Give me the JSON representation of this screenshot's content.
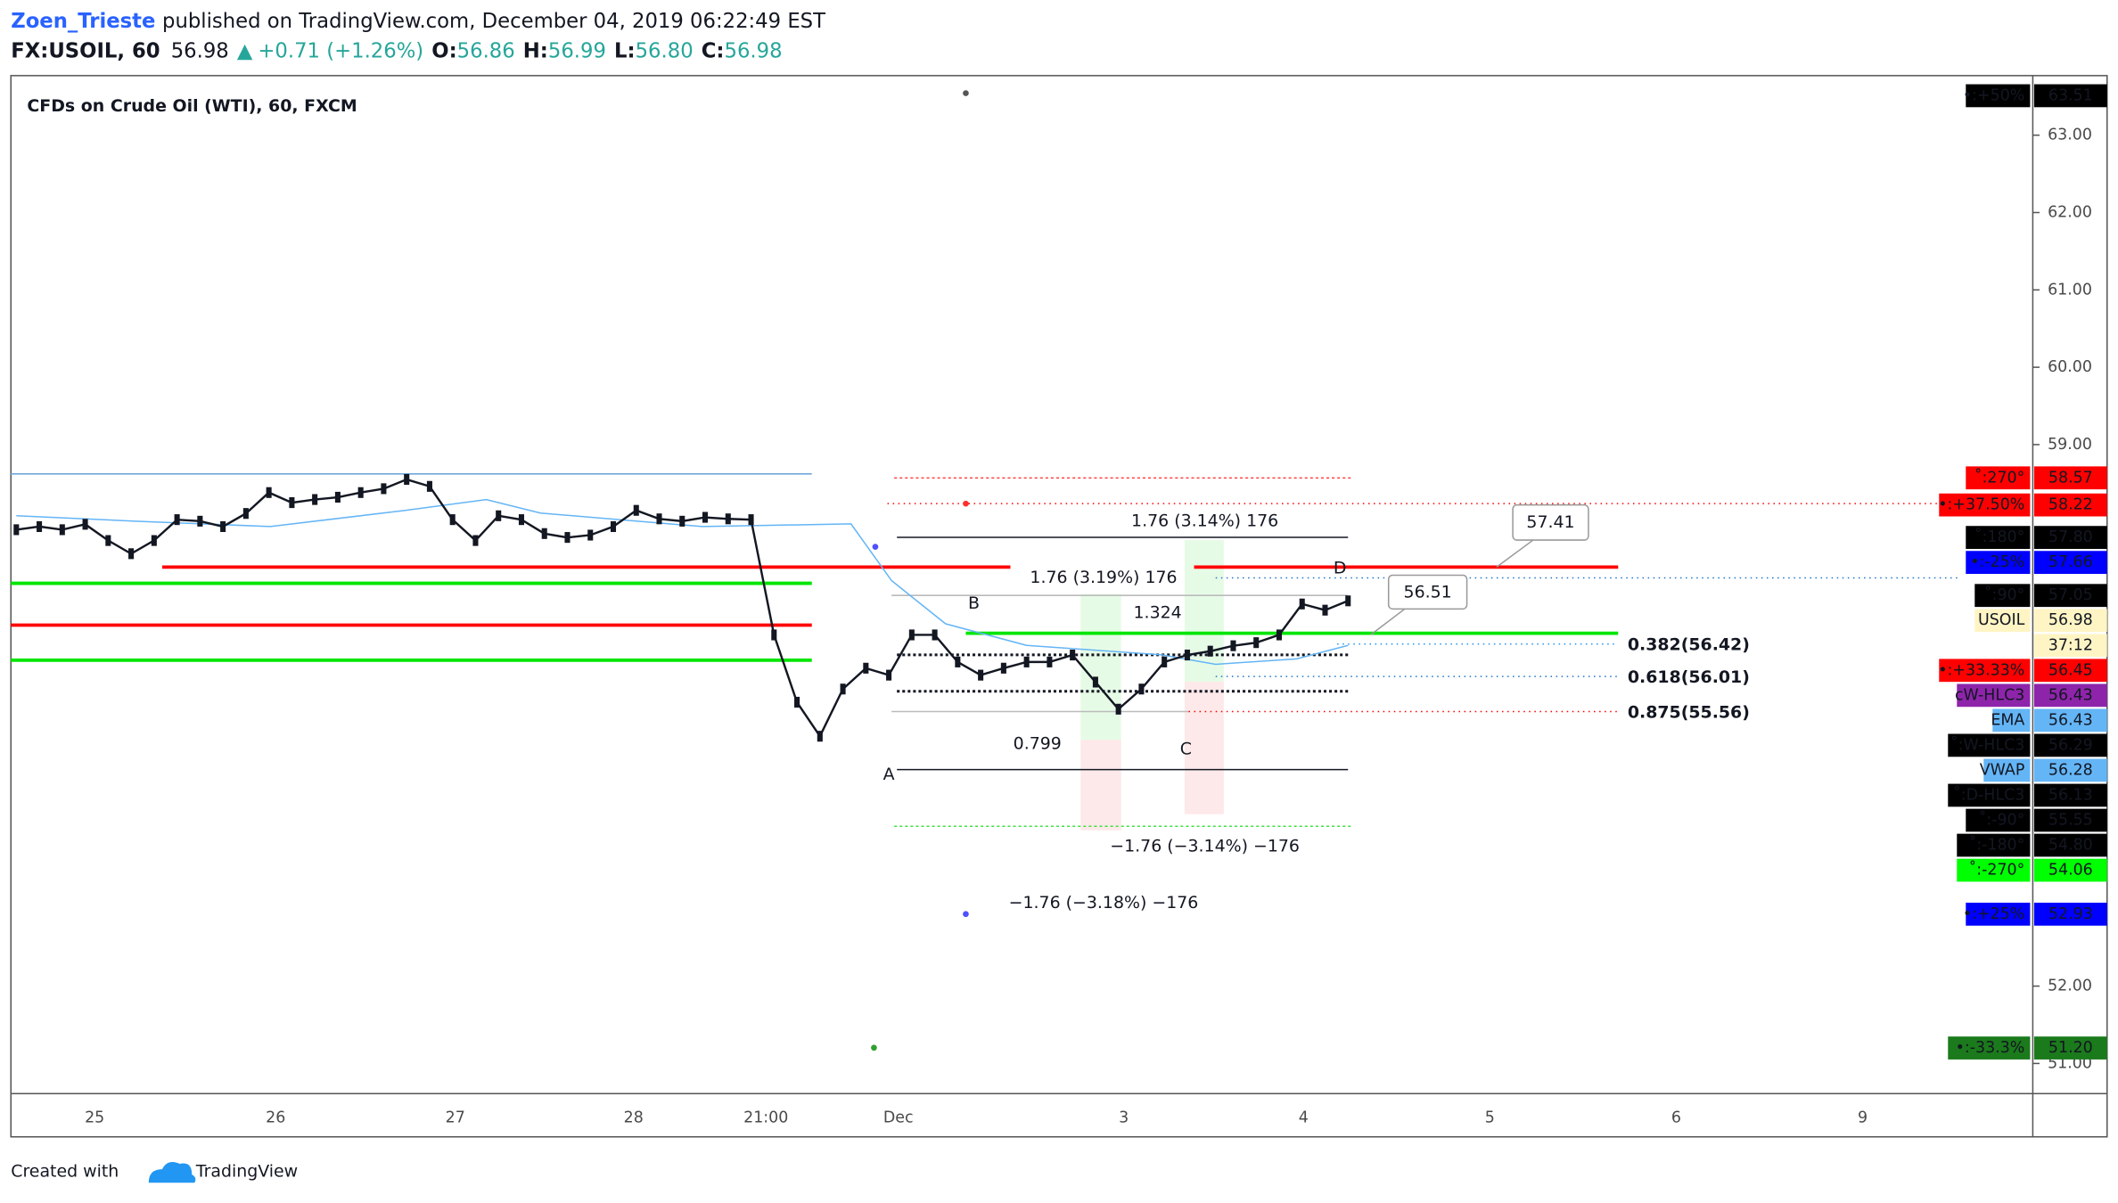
{
  "header": {
    "author": "Zoen_Trieste",
    "published": "published on TradingView.com, December 04, 2019 06:22:49 EST",
    "symbol": "FX:USOIL, 60",
    "last": "56.98",
    "arrow": "▲",
    "change": "+0.71 (+1.26%)",
    "ohlc": [
      {
        "key": "O:",
        "value": "56.86"
      },
      {
        "key": "H:",
        "value": "56.99"
      },
      {
        "key": "L:",
        "value": "56.80"
      },
      {
        "key": "C:",
        "value": "56.98"
      }
    ]
  },
  "chart": {
    "title": "CFDs on Crude Oil (WTI), 60, FXCM",
    "ylim": [
      50.61,
      63.77
    ],
    "yticks": [
      {
        "value": 51,
        "label": "51.00"
      },
      {
        "value": 52,
        "label": "52.00"
      },
      {
        "value": 59,
        "label": "59.00"
      },
      {
        "value": 60,
        "label": "60.00"
      },
      {
        "value": 61,
        "label": "61.00"
      },
      {
        "value": 62,
        "label": "62.00"
      },
      {
        "value": 63,
        "label": "63.00"
      }
    ],
    "price_series": {
      "color": "#131722",
      "values": [
        57.9,
        57.94,
        57.9,
        57.97,
        57.76,
        57.59,
        57.76,
        58.03,
        58.01,
        57.94,
        58.11,
        58.38,
        58.25,
        58.29,
        58.32,
        58.38,
        58.43,
        58.55,
        58.46,
        58.03,
        57.76,
        58.08,
        58.03,
        57.85,
        57.8,
        57.83,
        57.94,
        58.15,
        58.04,
        58.01,
        58.06,
        58.04,
        58.03,
        56.54,
        55.67,
        55.23,
        55.84,
        56.11,
        56.02,
        56.54,
        56.54,
        56.19,
        56.02,
        56.11,
        56.19,
        56.19,
        56.28,
        55.93,
        55.58,
        55.84,
        56.19,
        56.28,
        56.33,
        56.4,
        56.44,
        56.54,
        56.94,
        56.86,
        56.98
      ]
    },
    "badges": [
      {
        "label": "•:+50%",
        "value": 63.51,
        "bg": "#000000",
        "fg": "#ffffff"
      },
      {
        "label": "˚:270°",
        "value": 58.57,
        "bg": "#ff0000",
        "fg": "#ffffff"
      },
      {
        "label": "•:+37.50%",
        "value": 58.22,
        "bg": "#ff0000",
        "fg": "#ffffff"
      },
      {
        "label": "˚:180°",
        "value": 57.8,
        "value_label": "57.80",
        "bg": "#000000",
        "fg": "#ffffff"
      },
      {
        "label": "•:-25%",
        "value": 57.66,
        "bg": "#0000ff",
        "fg": "#ffffff"
      },
      {
        "label": "˚:90°",
        "value": 57.05,
        "bg": "#000000",
        "fg": "#ffffff"
      },
      {
        "label": "USOIL",
        "value": 56.98,
        "bg": "#fff5c4",
        "fg": "#000000"
      },
      {
        "label": "37:12",
        "bg": "#fff5c4",
        "fg": "#000000"
      },
      {
        "label": "•:+33.33%",
        "value": 56.45,
        "bg": "#ff0000",
        "fg": "#ffffff"
      },
      {
        "label": "cW-HLC3",
        "value": 56.43,
        "bg": "#8e24aa",
        "fg": "#ffffff"
      },
      {
        "label": "EMA",
        "value": 56.43,
        "bg": "#64b5f6",
        "fg": "#000000"
      },
      {
        "label": "˚:W-HLC3",
        "value": 56.29,
        "bg": "#000000",
        "fg": "#ffffff"
      },
      {
        "label": "VWAP",
        "value": 56.28,
        "bg": "#64b5f6",
        "fg": "#000000"
      },
      {
        "label": "˚:D-HLC3",
        "value": 56.13,
        "bg": "#000000",
        "fg": "#ffffff"
      },
      {
        "label": "˚:-90°",
        "value": 55.55,
        "bg": "#000000",
        "fg": "#ffffff"
      },
      {
        "label": "˚:-180°",
        "value": 54.8,
        "value_label": "54.80",
        "bg": "#000000",
        "fg": "#ffffff"
      },
      {
        "label": "˚:-270°",
        "value": 54.06,
        "bg": "#00ff00",
        "fg": "#000000"
      },
      {
        "label": "•:+25%",
        "value": 52.93,
        "bg": "#0000ff",
        "fg": "#ffffff"
      },
      {
        "label": "•:-33.3%",
        "value": 51.2,
        "value_label": "51.20",
        "bg": "#1b7a1b",
        "fg": "#ffffff"
      }
    ],
    "annotations": [
      {
        "text": "1.76 (3.14%) 176",
        "color": "#131722"
      },
      {
        "text": "1.76 (3.19%) 176",
        "color": "#131722"
      },
      {
        "text": "B",
        "color": "#131722"
      },
      {
        "text": "1.324",
        "color": "#131722"
      },
      {
        "text": "D",
        "color": "#131722"
      },
      {
        "text": "0.799",
        "color": "#131722"
      },
      {
        "text": "C",
        "color": "#131722"
      },
      {
        "text": "A",
        "color": "#131722"
      },
      {
        "text": "−1.76 (−3.14%) −176",
        "color": "#131722"
      },
      {
        "text": "−1.76 (−3.18%) −176",
        "color": "#131722"
      },
      {
        "text": "57.41",
        "color": "#787b86"
      },
      {
        "text": "56.51",
        "color": "#787b86"
      },
      {
        "text": "0.382(56.42)",
        "color": "#2196f3"
      },
      {
        "text": "0.618(56.01)",
        "color": "#1e74c8"
      },
      {
        "text": "0.875(55.56)",
        "color": "#ff0000"
      }
    ],
    "time_labels": [
      "25",
      "26",
      "27",
      "28",
      "21:00",
      "Dec",
      "3",
      "4",
      "5",
      "6",
      "9"
    ]
  },
  "footer": {
    "created": "Created with",
    "brand": "TradingView"
  }
}
